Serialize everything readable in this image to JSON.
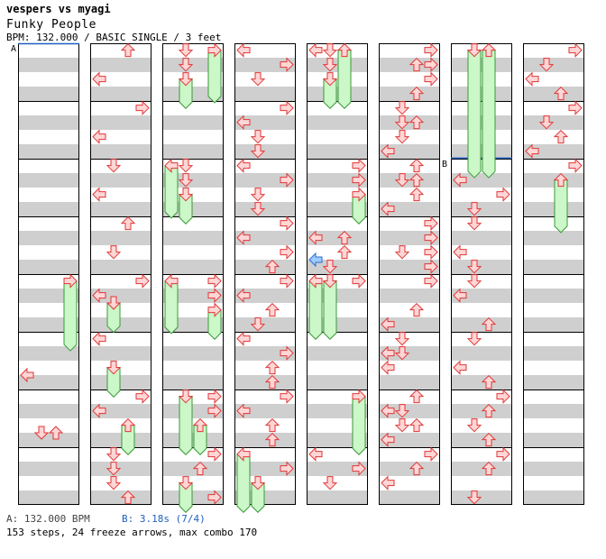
{
  "header": {
    "title": "vespers vs myagi",
    "song": "Funky People",
    "meta": "BPM: 132.000 / BASIC SINGLE / 3 feet"
  },
  "markers": {
    "a": "A",
    "b": "B"
  },
  "footer": {
    "bpm_text": "A: 132.000 BPM",
    "stop_text": "B: 3.18s (7/4)",
    "stats_text": "153 steps, 24 freeze arrows, max combo 170"
  },
  "colors": {
    "arrow_fill": "#ffd6d6",
    "arrow_stroke": "#e03535",
    "freeze_fill": "#ccf7c8",
    "freeze_stroke": "#3a9a3a",
    "stripe": "#cfcfcf",
    "marker_blue": "#1f5fbf",
    "blue_fill": "#9fcbff",
    "blue_stroke": "#2a6fd0"
  },
  "chart_data": {
    "type": "step-chart",
    "columns": 8,
    "measures_per_column": 8,
    "lanes": [
      "left",
      "down",
      "up",
      "right"
    ],
    "stop_marker": {
      "label": "B",
      "column": 6,
      "measure": 1.99
    },
    "notes": [
      [
        0,
        4.12,
        "right",
        "freeze"
      ],
      [
        0,
        5.75,
        "left"
      ],
      [
        0,
        6.75,
        "down"
      ],
      [
        0,
        6.75,
        "up"
      ],
      [
        1,
        0.12,
        "up"
      ],
      [
        1,
        0.62,
        "left"
      ],
      [
        1,
        1.12,
        "right"
      ],
      [
        1,
        1.62,
        "left"
      ],
      [
        1,
        2.12,
        "down"
      ],
      [
        1,
        2.62,
        "left"
      ],
      [
        1,
        3.12,
        "up"
      ],
      [
        1,
        3.62,
        "down"
      ],
      [
        1,
        4.12,
        "right"
      ],
      [
        1,
        4.37,
        "left"
      ],
      [
        1,
        4.5,
        "down",
        "freeze"
      ],
      [
        1,
        5.12,
        "left"
      ],
      [
        1,
        5.62,
        "down",
        "freeze"
      ],
      [
        1,
        6.12,
        "right"
      ],
      [
        1,
        6.37,
        "left"
      ],
      [
        1,
        6.62,
        "up",
        "freeze"
      ],
      [
        1,
        7.12,
        "down"
      ],
      [
        1,
        7.37,
        "down"
      ],
      [
        1,
        7.62,
        "down"
      ],
      [
        1,
        7.87,
        "up"
      ],
      [
        2,
        0.12,
        "down"
      ],
      [
        2,
        0.37,
        "down"
      ],
      [
        2,
        0.62,
        "down",
        "freeze"
      ],
      [
        2,
        0.12,
        "right",
        "freeze"
      ],
      [
        2,
        2.12,
        "left",
        "freeze"
      ],
      [
        2,
        2.12,
        "down"
      ],
      [
        2,
        2.37,
        "down"
      ],
      [
        2,
        2.62,
        "down",
        "freeze"
      ],
      [
        2,
        4.12,
        "left",
        "freeze"
      ],
      [
        2,
        4.12,
        "right"
      ],
      [
        2,
        4.37,
        "right"
      ],
      [
        2,
        4.62,
        "right",
        "freeze"
      ],
      [
        2,
        6.12,
        "down",
        "freeze"
      ],
      [
        2,
        6.12,
        "right"
      ],
      [
        2,
        6.37,
        "right"
      ],
      [
        2,
        6.62,
        "up",
        "freeze"
      ],
      [
        2,
        7.12,
        "right"
      ],
      [
        2,
        7.37,
        "up"
      ],
      [
        2,
        7.62,
        "down",
        "freeze"
      ],
      [
        2,
        7.87,
        "right"
      ],
      [
        3,
        0.12,
        "left"
      ],
      [
        3,
        0.37,
        "right"
      ],
      [
        3,
        0.62,
        "down"
      ],
      [
        3,
        1.12,
        "right"
      ],
      [
        3,
        1.37,
        "left"
      ],
      [
        3,
        1.62,
        "down"
      ],
      [
        3,
        1.87,
        "down"
      ],
      [
        3,
        2.12,
        "left"
      ],
      [
        3,
        2.37,
        "right"
      ],
      [
        3,
        2.62,
        "down"
      ],
      [
        3,
        2.87,
        "down"
      ],
      [
        3,
        3.12,
        "right"
      ],
      [
        3,
        3.37,
        "left"
      ],
      [
        3,
        3.62,
        "right"
      ],
      [
        3,
        3.87,
        "up"
      ],
      [
        3,
        4.12,
        "right"
      ],
      [
        3,
        4.37,
        "left"
      ],
      [
        3,
        4.62,
        "up"
      ],
      [
        3,
        4.87,
        "down"
      ],
      [
        3,
        5.12,
        "left"
      ],
      [
        3,
        5.37,
        "right"
      ],
      [
        3,
        5.62,
        "up"
      ],
      [
        3,
        5.87,
        "up"
      ],
      [
        3,
        6.12,
        "right"
      ],
      [
        3,
        6.37,
        "left"
      ],
      [
        3,
        6.62,
        "up"
      ],
      [
        3,
        6.87,
        "up"
      ],
      [
        3,
        7.12,
        "left",
        "freeze"
      ],
      [
        3,
        7.37,
        "right"
      ],
      [
        3,
        7.62,
        "down",
        "freeze"
      ],
      [
        4,
        0.12,
        "left"
      ],
      [
        4,
        0.12,
        "down"
      ],
      [
        4,
        0.12,
        "up",
        "freeze"
      ],
      [
        4,
        0.37,
        "down"
      ],
      [
        4,
        0.62,
        "down",
        "freeze"
      ],
      [
        4,
        2.12,
        "right"
      ],
      [
        4,
        2.37,
        "right"
      ],
      [
        4,
        2.62,
        "right",
        "freeze"
      ],
      [
        4,
        3.37,
        "left"
      ],
      [
        4,
        3.37,
        "up"
      ],
      [
        4,
        3.62,
        "up"
      ],
      [
        4,
        3.75,
        "left",
        "blue"
      ],
      [
        4,
        3.87,
        "down"
      ],
      [
        4,
        4.12,
        "right"
      ],
      [
        4,
        4.12,
        "left",
        "freeze"
      ],
      [
        4,
        4.12,
        "down",
        "freeze"
      ],
      [
        4,
        6.12,
        "right",
        "freeze"
      ],
      [
        4,
        7.12,
        "left"
      ],
      [
        4,
        7.37,
        "right"
      ],
      [
        4,
        7.62,
        "down"
      ],
      [
        5,
        0.12,
        "right"
      ],
      [
        5,
        0.37,
        "up"
      ],
      [
        5,
        0.37,
        "right"
      ],
      [
        5,
        0.62,
        "right"
      ],
      [
        5,
        0.87,
        "up"
      ],
      [
        5,
        1.12,
        "down"
      ],
      [
        5,
        1.37,
        "down"
      ],
      [
        5,
        1.37,
        "up"
      ],
      [
        5,
        1.62,
        "down"
      ],
      [
        5,
        1.87,
        "left"
      ],
      [
        5,
        2.12,
        "up"
      ],
      [
        5,
        2.37,
        "down"
      ],
      [
        5,
        2.37,
        "up"
      ],
      [
        5,
        2.62,
        "up"
      ],
      [
        5,
        2.87,
        "left"
      ],
      [
        5,
        3.12,
        "right"
      ],
      [
        5,
        3.37,
        "right"
      ],
      [
        5,
        3.62,
        "down"
      ],
      [
        5,
        3.62,
        "right"
      ],
      [
        5,
        3.87,
        "right"
      ],
      [
        5,
        4.12,
        "right"
      ],
      [
        5,
        4.62,
        "up"
      ],
      [
        5,
        4.87,
        "left"
      ],
      [
        5,
        5.12,
        "down"
      ],
      [
        5,
        5.37,
        "left"
      ],
      [
        5,
        5.37,
        "down"
      ],
      [
        5,
        5.62,
        "left"
      ],
      [
        5,
        6.12,
        "up"
      ],
      [
        5,
        6.37,
        "left"
      ],
      [
        5,
        6.37,
        "down"
      ],
      [
        5,
        6.62,
        "down"
      ],
      [
        5,
        6.62,
        "up"
      ],
      [
        5,
        6.87,
        "left"
      ],
      [
        5,
        7.12,
        "right"
      ],
      [
        5,
        7.37,
        "up"
      ],
      [
        5,
        7.62,
        "left"
      ],
      [
        6,
        0.12,
        "down",
        "freeze"
      ],
      [
        6,
        0.12,
        "up",
        "freeze"
      ],
      [
        6,
        2.37,
        "left"
      ],
      [
        6,
        2.62,
        "right"
      ],
      [
        6,
        2.87,
        "down"
      ],
      [
        6,
        3.12,
        "down"
      ],
      [
        6,
        3.62,
        "left"
      ],
      [
        6,
        3.87,
        "down"
      ],
      [
        6,
        4.12,
        "down"
      ],
      [
        6,
        4.37,
        "left"
      ],
      [
        6,
        4.87,
        "up"
      ],
      [
        6,
        5.12,
        "down"
      ],
      [
        6,
        5.62,
        "left"
      ],
      [
        6,
        5.87,
        "up"
      ],
      [
        6,
        6.12,
        "right"
      ],
      [
        6,
        6.37,
        "up"
      ],
      [
        6,
        6.62,
        "down"
      ],
      [
        6,
        6.87,
        "up"
      ],
      [
        6,
        7.12,
        "right"
      ],
      [
        6,
        7.37,
        "up"
      ],
      [
        6,
        7.87,
        "down"
      ],
      [
        7,
        0.12,
        "right"
      ],
      [
        7,
        0.37,
        "down"
      ],
      [
        7,
        0.62,
        "left"
      ],
      [
        7,
        0.87,
        "up"
      ],
      [
        7,
        1.12,
        "right"
      ],
      [
        7,
        1.37,
        "down"
      ],
      [
        7,
        1.62,
        "up"
      ],
      [
        7,
        1.87,
        "left"
      ],
      [
        7,
        2.12,
        "right"
      ],
      [
        7,
        2.37,
        "up",
        "freeze"
      ]
    ],
    "freeze_lengths": {
      "0-4.12-right": 1.1,
      "1-4.5-down": 0.4,
      "1-5.62-down": 0.4,
      "1-6.62-up": 0.4,
      "2-0.62-down": 0.4,
      "2-0.12-right": 0.8,
      "2-2.12-left": 0.8,
      "2-2.62-down": 0.4,
      "2-4.12-left": 0.8,
      "2-4.62-right": 0.4,
      "2-6.12-down": 0.9,
      "2-6.62-up": 0.4,
      "2-7.62-down": 0.4,
      "3-7.12-left": 0.9,
      "3-7.62-down": 0.4,
      "4-0.12-up": 0.9,
      "4-0.62-down": 0.4,
      "4-2.62-right": 0.4,
      "4-4.12-left": 0.9,
      "4-4.12-down": 0.9,
      "4-6.12-right": 0.9,
      "6-0.12-down": 2.1,
      "6-0.12-up": 2.1,
      "7-2.37-up": 0.8
    }
  }
}
